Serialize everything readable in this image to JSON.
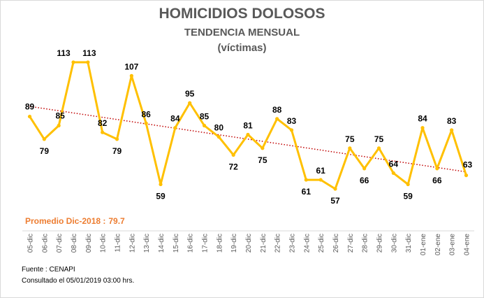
{
  "chart_data": {
    "type": "line",
    "title": "HOMICIDIOS DOLOSOS",
    "subtitle": "TENDENCIA MENSUAL",
    "subtitle2": "(víctimas)",
    "categories": [
      "05-dic",
      "06-dic",
      "07-dic",
      "08-dic",
      "09-dic",
      "10-dic",
      "11-dic",
      "12-dic",
      "13-dic",
      "14-dic",
      "15-dic",
      "16-dic",
      "17-dic",
      "18-dic",
      "19-dic",
      "20-dic",
      "21-dic",
      "22-dic",
      "23-dic",
      "24-dic",
      "25-dic",
      "26-dic",
      "27-dic",
      "28-dic",
      "29-dic",
      "30-dic",
      "31-dic",
      "01-ene",
      "02-ene",
      "03-ene",
      "04-ene"
    ],
    "values": [
      89,
      79,
      85,
      113,
      113,
      82,
      79,
      107,
      86,
      59,
      84,
      95,
      85,
      80,
      72,
      81,
      75,
      88,
      83,
      61,
      61,
      57,
      75,
      66,
      75,
      64,
      59,
      84,
      66,
      83,
      63
    ],
    "trendline": {
      "type": "linear",
      "color": "#c00000",
      "style": "dotted"
    },
    "line_color": "#ffc000",
    "ylim": [
      40,
      120
    ],
    "grid": false,
    "legend": "none",
    "average_label": "Promedio Dic-2018 :",
    "average_value": "79.7",
    "average_color": "#ed7d31"
  },
  "footer": {
    "source": "Fuente : CENAPI",
    "consulted": "Consultado el 05/01/2019  03:00 hrs."
  }
}
